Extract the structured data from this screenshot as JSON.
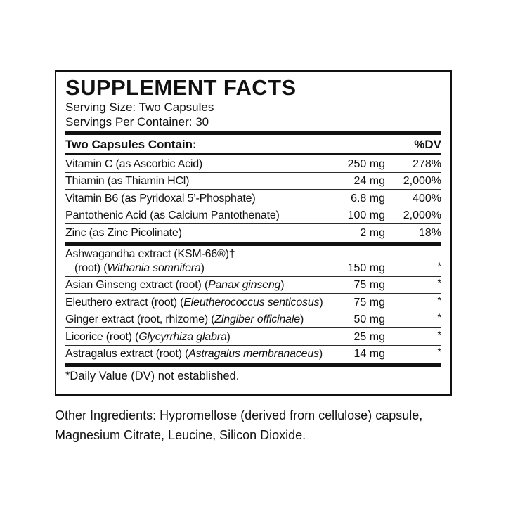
{
  "colors": {
    "text": "#111111",
    "background": "#ffffff",
    "rule": "#2b2b2b"
  },
  "label": {
    "title": "SUPPLEMENT FACTS",
    "serving_size": "Serving Size: Two Capsules",
    "servings_per_container": "Servings Per Container: 30",
    "header": {
      "left": "Two Capsules Contain:",
      "right": "%DV"
    },
    "vitamin_rows": [
      {
        "name": "Vitamin C (as Ascorbic Acid)",
        "amount": "250 mg",
        "dv": "278%"
      },
      {
        "name": "Thiamin (as Thiamin HCl)",
        "amount": "24 mg",
        "dv": "2,000%"
      },
      {
        "name": "Vitamin B6 (as Pyridoxal 5’-Phosphate)",
        "amount": "6.8 mg",
        "dv": "400%"
      },
      {
        "name": "Pantothenic Acid (as Calcium Pantothenate)",
        "amount": "100 mg",
        "dv": "2,000%"
      },
      {
        "name": "Zinc (as Zinc Picolinate)",
        "amount": "2 mg",
        "dv": "18%"
      }
    ],
    "botanical_rows": [
      {
        "line1": "Ashwagandha extract (KSM-66®)†",
        "line2_prefix": "(root) (",
        "line2_latin": "Withania somnifera",
        "line2_suffix": ")",
        "amount": "150 mg",
        "dv": "*"
      },
      {
        "prefix": "Asian Ginseng extract (root) (",
        "latin": "Panax ginseng",
        "suffix": ")",
        "amount": "75 mg",
        "dv": "*"
      },
      {
        "prefix": "Eleuthero extract (root) (",
        "latin": "Eleutherococcus senticosus",
        "suffix": ")",
        "amount": "75 mg",
        "dv": "*"
      },
      {
        "prefix": "Ginger extract (root, rhizome) (",
        "latin": "Zingiber officinale",
        "suffix": ")",
        "amount": "50 mg",
        "dv": "*"
      },
      {
        "prefix": "Licorice (root) (",
        "latin": "Glycyrrhiza glabra",
        "suffix": ")",
        "amount": "25 mg",
        "dv": "*"
      },
      {
        "prefix": "Astragalus extract (root) (",
        "latin": "Astragalus membranaceus",
        "suffix": ")",
        "amount": "14 mg",
        "dv": "*"
      }
    ],
    "footnote": "*Daily Value (DV) not established."
  },
  "other_ingredients": "Other Ingredients: Hypromellose (derived from cellulose) capsule, Magnesium Citrate, Leucine, Silicon Dioxide."
}
